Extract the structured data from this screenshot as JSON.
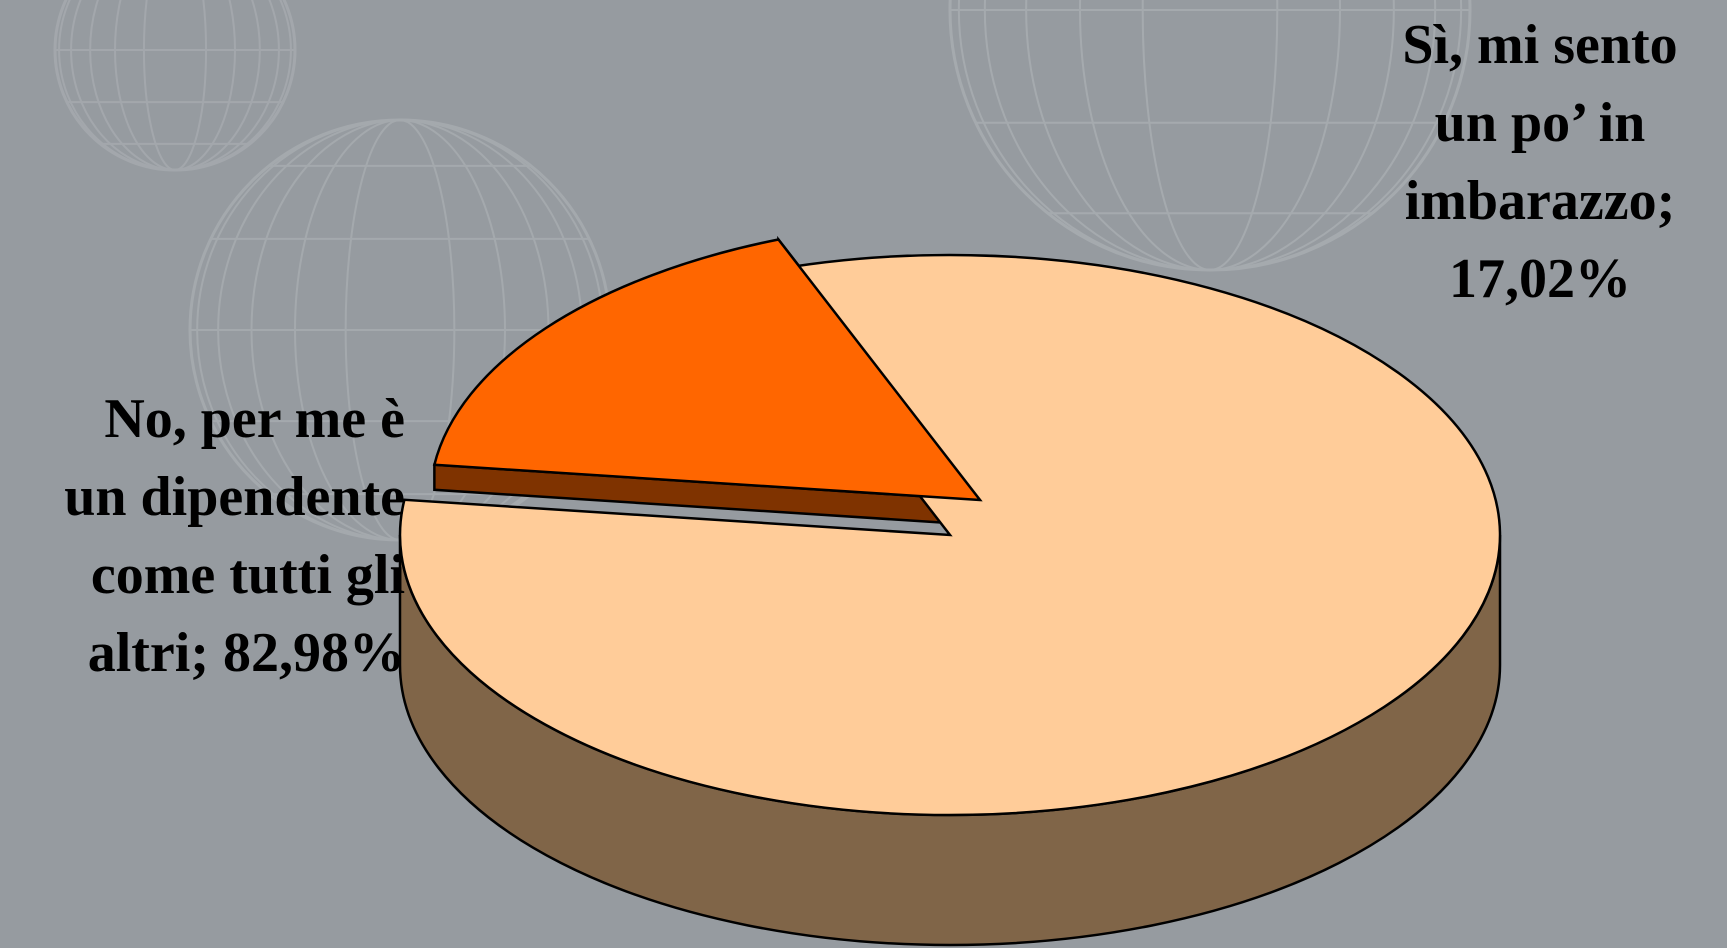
{
  "chart_data": {
    "type": "pie",
    "title": "",
    "slices": [
      {
        "label_lines": [
          "No, per me è",
          "un dipendente",
          "come tutti gli",
          "altri; 82,98%"
        ],
        "value": 82.98,
        "top_color": "#ffcc99",
        "side_color": "#806548"
      },
      {
        "label_lines": [
          "Sì, mi sento",
          "un po’ in",
          "imbarazzo;",
          "17,02%"
        ],
        "value": 17.02,
        "top_color": "#ff6600",
        "side_color": "#7f3300",
        "exploded": true
      }
    ]
  },
  "colors": {
    "background": "#969ba0",
    "globe_lines": "#b3b7bb"
  }
}
